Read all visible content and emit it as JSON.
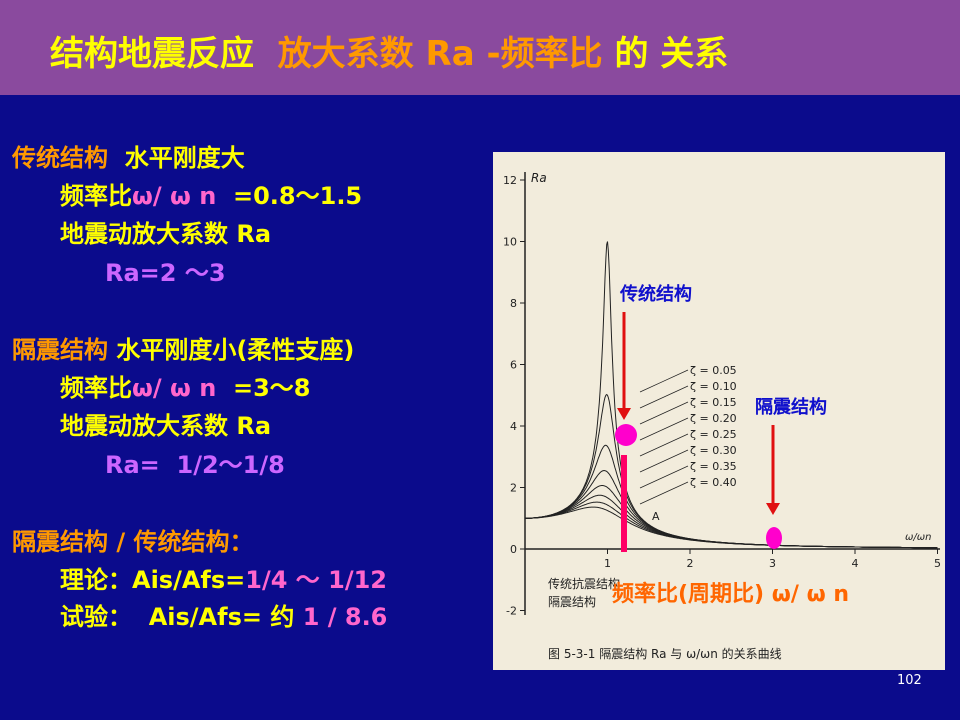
{
  "header": {
    "title": [
      "结构地震反应",
      "放大系数 Ra -频率比",
      "的 关系"
    ]
  },
  "left": {
    "lines": [
      [
        "传统结构",
        "  水平刚度大"
      ],
      [
        "频率比",
        "ω/ ω n",
        "  =0.8～1.5"
      ],
      [
        "地震动放大系数 Ra"
      ],
      [
        "Ra=2 ～3"
      ],
      [
        "隔震结构",
        " 水平刚度小(柔性支座)"
      ],
      [
        "频率比",
        "ω/ ω n",
        "  =3～8"
      ],
      [
        "地震动放大系数 Ra"
      ],
      [
        "Ra=  1/2～1/8"
      ],
      [
        "隔震结构 / 传统结构："
      ],
      [
        "理论：Ais/Afs=",
        "1/4 ～ 1/12"
      ],
      [
        "试验：  Ais/Afs= 约 ",
        "1 / 8.6"
      ]
    ]
  },
  "figure": {
    "y_label": "Ra",
    "x_label": "ω/ωn",
    "yticks": [
      -2,
      0,
      2,
      4,
      6,
      8,
      10,
      12
    ],
    "xticks": [
      1,
      2,
      3,
      4,
      5
    ],
    "curves": [
      {
        "value": 0.05,
        "label": "ζ = 0.05"
      },
      {
        "value": 0.1,
        "label": "ζ = 0.10"
      },
      {
        "value": 0.15,
        "label": "ζ = 0.15"
      },
      {
        "value": 0.2,
        "label": "ζ = 0.20"
      },
      {
        "value": 0.25,
        "label": "ζ = 0.25"
      },
      {
        "value": 0.3,
        "label": "ζ = 0.30"
      },
      {
        "value": 0.35,
        "label": "ζ = 0.35"
      },
      {
        "value": 0.4,
        "label": "ζ = 0.40"
      }
    ],
    "point_label": "A",
    "legend_texts": [
      "传统抗震结构",
      "隔震结构"
    ],
    "caption": "图 5-3-1   隔震结构 Ra 与 ω/ωn 的关系曲线",
    "annotations": [
      "传统结构",
      "隔震结构"
    ],
    "x_annotation": "频率比(周期比) ω/ ω n"
  },
  "page_number": "102"
}
